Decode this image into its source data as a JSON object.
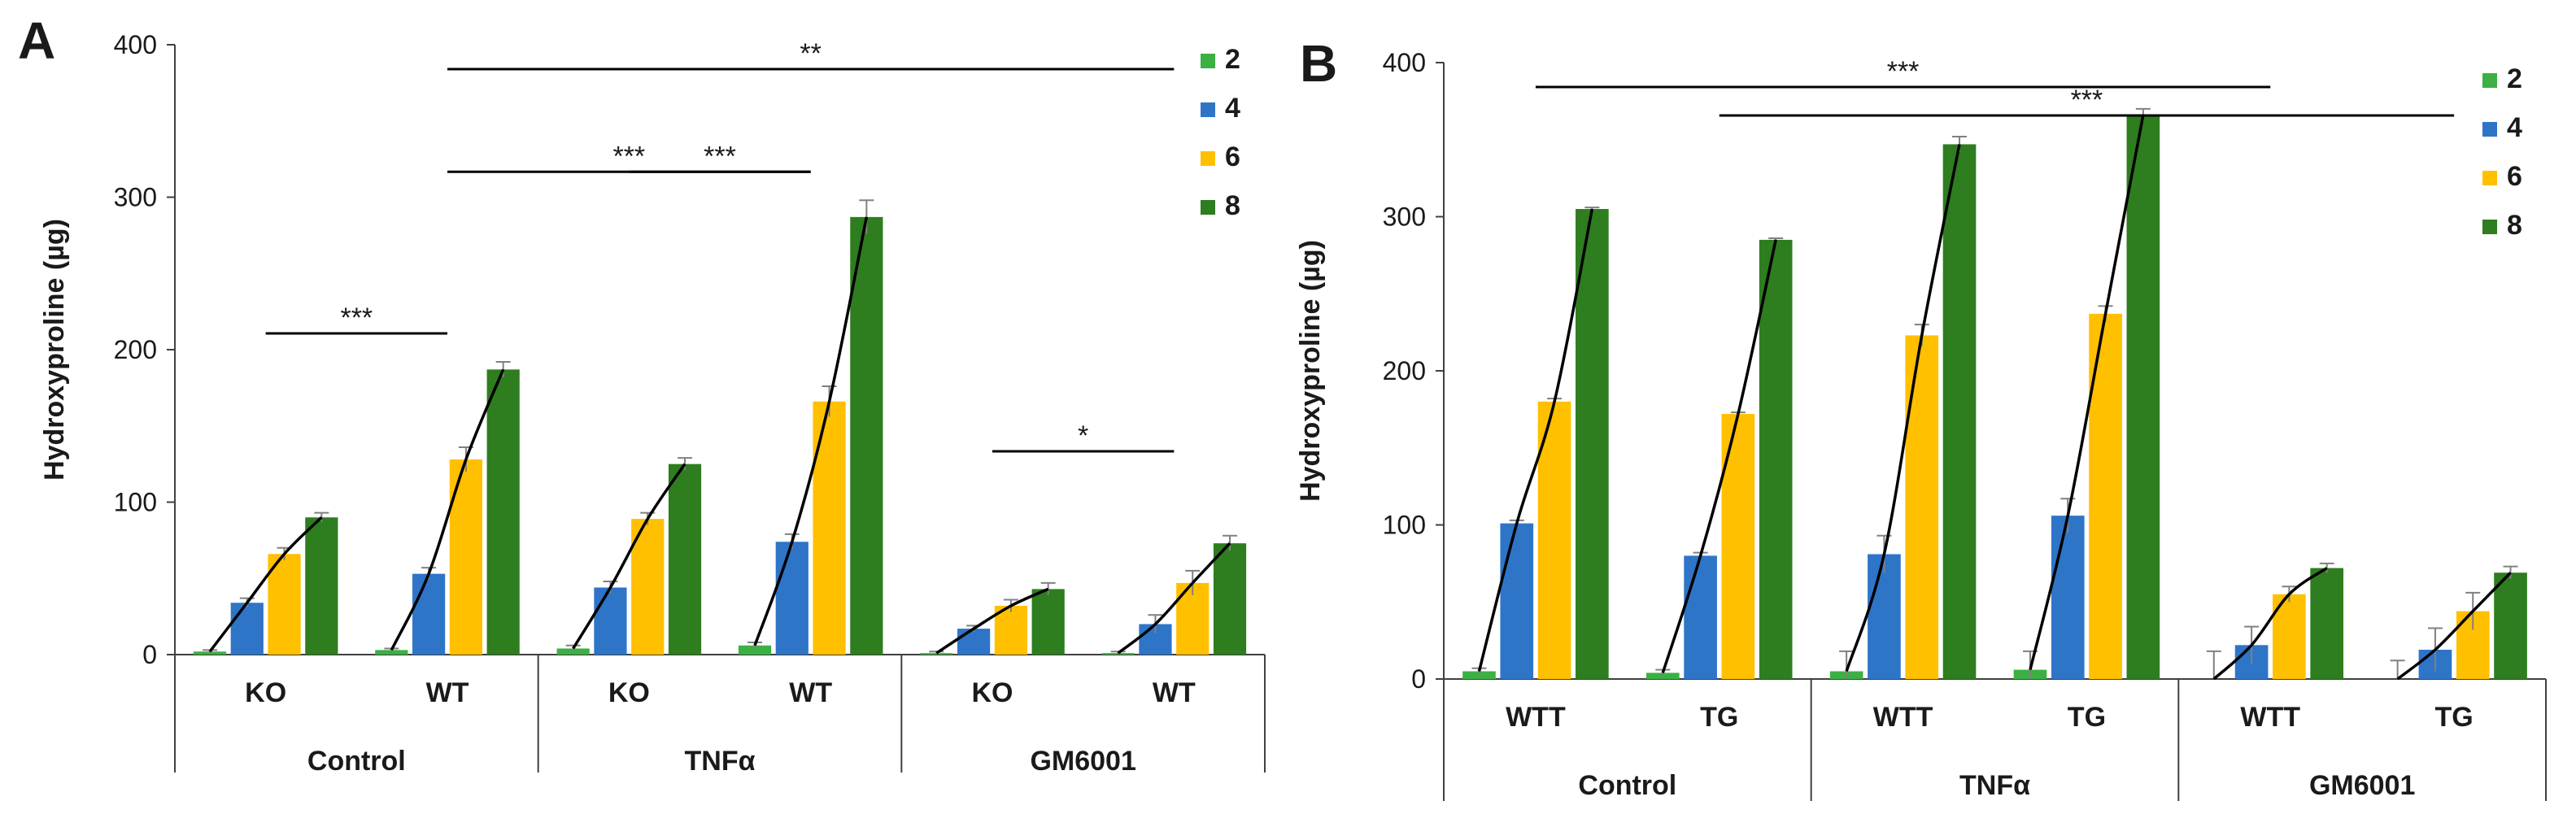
{
  "colors": {
    "day2": "#3cb043",
    "day4": "#2e75c8",
    "day6": "#ffc000",
    "day8": "#2e7d1f",
    "axis": "#404040",
    "text": "#1a1a1a"
  },
  "chart_data": [
    {
      "panel_label": "A",
      "type": "bar",
      "ylabel": "Hydroxyproline  (µg)",
      "ylim": [
        0,
        400
      ],
      "yticks": [
        0,
        100,
        200,
        300,
        400
      ],
      "legend": {
        "entries": [
          "2",
          "4",
          "6",
          "8"
        ],
        "position": "top-right"
      },
      "groups": [
        {
          "label": "Control",
          "subgroups": [
            "KO",
            "WT"
          ]
        },
        {
          "label": "TNFα",
          "subgroups": [
            "KO",
            "WT"
          ]
        },
        {
          "label": "GM6001",
          "subgroups": [
            "KO",
            "WT"
          ]
        }
      ],
      "series": [
        {
          "name": "2",
          "values": [
            2,
            3,
            4,
            6,
            1,
            1
          ],
          "errors": [
            1,
            1,
            2,
            2,
            1,
            1
          ]
        },
        {
          "name": "4",
          "values": [
            34,
            53,
            44,
            74,
            17,
            20
          ],
          "errors": [
            3,
            4,
            4,
            5,
            2,
            6
          ]
        },
        {
          "name": "6",
          "values": [
            66,
            128,
            89,
            166,
            32,
            47
          ],
          "errors": [
            4,
            8,
            4,
            10,
            4,
            8
          ]
        },
        {
          "name": "8",
          "values": [
            90,
            187,
            125,
            287,
            43,
            73
          ],
          "errors": [
            3,
            5,
            4,
            11,
            4,
            5
          ]
        }
      ],
      "significance": [
        {
          "label": "***",
          "from": [
            0,
            0
          ],
          "to": [
            0,
            1
          ]
        },
        {
          "label": "***",
          "from": [
            0,
            1
          ],
          "to": [
            1,
            1
          ]
        },
        {
          "label": "**",
          "from": [
            0,
            1
          ],
          "to": [
            2,
            1
          ]
        },
        {
          "label": "***",
          "from": [
            1,
            0
          ],
          "to": [
            1,
            1
          ]
        },
        {
          "label": "*",
          "from": [
            2,
            0
          ],
          "to": [
            2,
            1
          ]
        }
      ]
    },
    {
      "panel_label": "B",
      "type": "bar",
      "ylabel": "Hydroxyproline  (µg)",
      "ylim": [
        0,
        400
      ],
      "yticks": [
        0,
        100,
        200,
        300,
        400
      ],
      "legend": {
        "entries": [
          "2",
          "4",
          "6",
          "8"
        ],
        "position": "top-right"
      },
      "groups": [
        {
          "label": "Control",
          "subgroups": [
            "WTT",
            "TG"
          ]
        },
        {
          "label": "TNFα",
          "subgroups": [
            "WTT",
            "TG"
          ]
        },
        {
          "label": "GM6001",
          "subgroups": [
            "WTT",
            "TG"
          ]
        }
      ],
      "series": [
        {
          "name": "2",
          "values": [
            5,
            4,
            5,
            6,
            0,
            0
          ],
          "errors": [
            2,
            2,
            13,
            12,
            18,
            12
          ]
        },
        {
          "name": "4",
          "values": [
            101,
            80,
            81,
            106,
            22,
            19
          ],
          "errors": [
            2,
            2,
            12,
            11,
            12,
            14
          ]
        },
        {
          "name": "6",
          "values": [
            180,
            172,
            223,
            237,
            55,
            44
          ],
          "errors": [
            2,
            1,
            7,
            5,
            5,
            12
          ]
        },
        {
          "name": "8",
          "values": [
            305,
            285,
            347,
            366,
            72,
            69
          ],
          "errors": [
            1,
            1,
            5,
            4,
            3,
            4
          ]
        }
      ],
      "significance": [
        {
          "label": "***",
          "from": [
            0,
            0
          ],
          "to": [
            2,
            0
          ]
        },
        {
          "label": "***",
          "from": [
            0,
            1
          ],
          "to": [
            2,
            1
          ]
        }
      ]
    }
  ]
}
